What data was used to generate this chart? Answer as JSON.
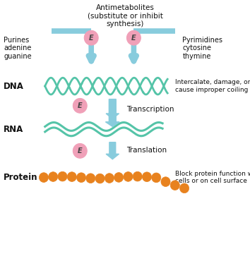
{
  "bg_color": "#ffffff",
  "arrow_color": "#88ccdd",
  "dna_color": "#55c4a8",
  "protein_color": "#e8821e",
  "enzyme_circle_color": "#f0a0b8",
  "enzyme_text_color": "#444444",
  "label_color": "#111111",
  "title": "Antimetabolites\n(substitute or inhibit\nsynthesis)",
  "left_label": "Purines\nadenine\nguanine",
  "right_label": "Pyrimidines\ncytosine\nthymine",
  "dna_label": "DNA",
  "dna_side_text": "Intercalate, damage, or\ncause improper coiling",
  "rna_label": "RNA",
  "protein_label": "Protein",
  "protein_side_text": "Block protein function within\ncells or on cell surface",
  "transcription_label": "Transcription",
  "translation_label": "Translation",
  "figsize": [
    3.54,
    3.7
  ],
  "dpi": 100
}
